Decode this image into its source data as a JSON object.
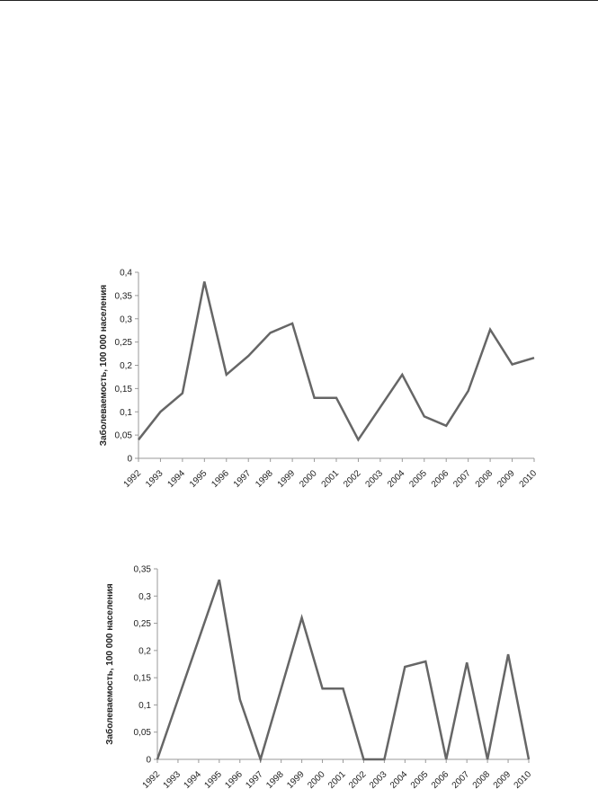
{
  "chart_data": [
    {
      "type": "line",
      "categories": [
        "1992",
        "1993",
        "1994",
        "1995",
        "1996",
        "1997",
        "1998",
        "1999",
        "2000",
        "2001",
        "2002",
        "2003",
        "2004",
        "2005",
        "2006",
        "2007",
        "2008",
        "2009",
        "2010"
      ],
      "series": [
        {
          "values": [
            0.04,
            0.1,
            0.14,
            0.38,
            0.18,
            0.22,
            0.27,
            0.29,
            0.13,
            0.13,
            0.04,
            0.11,
            0.18,
            0.09,
            0.07,
            0.145,
            0.277,
            0.202,
            0.216
          ]
        }
      ],
      "ylabel": "Заболеваемость, 100 000 населения",
      "ylim": [
        0,
        0.4
      ],
      "yticks": [
        "0",
        "0,05",
        "0,1",
        "0,15",
        "0,2",
        "0,25",
        "0,3",
        "0,35",
        "0,4"
      ],
      "line_color": "#666666",
      "grid": false
    },
    {
      "type": "line",
      "categories": [
        "1992",
        "1993",
        "1994",
        "1995",
        "1996",
        "1997",
        "1998",
        "1999",
        "2000",
        "2001",
        "2002",
        "2003",
        "2004",
        "2005",
        "2006",
        "2007",
        "2008",
        "2009",
        "2010"
      ],
      "series": [
        {
          "values": [
            0,
            0.11,
            0.22,
            0.33,
            0.11,
            0,
            0.13,
            0.26,
            0.13,
            0.13,
            0,
            0,
            0.17,
            0.18,
            0,
            0.178,
            0,
            0.193,
            0
          ]
        }
      ],
      "ylabel": "Заболеваемость, 100 000 населения",
      "ylim": [
        0,
        0.35
      ],
      "yticks": [
        "0",
        "0,05",
        "0,1",
        "0,15",
        "0,2",
        "0,25",
        "0,3",
        "0,35"
      ],
      "line_color": "#666666",
      "grid": false
    }
  ]
}
